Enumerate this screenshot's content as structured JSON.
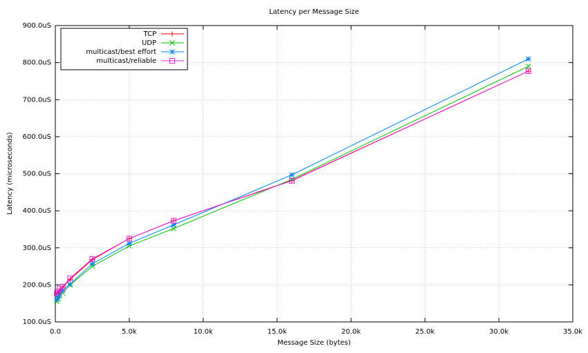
{
  "chart_data": {
    "type": "line",
    "title": "Latency per Message Size",
    "xlabel": "Message Size (bytes)",
    "ylabel": "Latency (microseconds)",
    "x": [
      100,
      200,
      300,
      500,
      1000,
      2500,
      5000,
      8000,
      16000,
      32000
    ],
    "series": [
      {
        "name": "TCP",
        "color": "#ff0000",
        "marker": "plus",
        "values": [
          175,
          178,
          185,
          193,
          215,
          268,
          325,
          373,
          482,
          777
        ]
      },
      {
        "name": "UDP",
        "color": "#00c000",
        "marker": "cross",
        "values": [
          155,
          162,
          170,
          178,
          200,
          250,
          305,
          352,
          485,
          790
        ]
      },
      {
        "name": "multicast/best effort",
        "color": "#0080ff",
        "marker": "star",
        "values": [
          160,
          168,
          175,
          185,
          202,
          257,
          312,
          362,
          497,
          810
        ]
      },
      {
        "name": "multicast/reliable",
        "color": "#e020e0",
        "marker": "square",
        "values": [
          177,
          182,
          190,
          195,
          218,
          270,
          325,
          373,
          481,
          777
        ]
      }
    ],
    "xlim": [
      0,
      35000
    ],
    "ylim": [
      100,
      900
    ],
    "xticks": [
      {
        "value": 0,
        "label": "0.0"
      },
      {
        "value": 5000,
        "label": "5.0k"
      },
      {
        "value": 10000,
        "label": "10.0k"
      },
      {
        "value": 15000,
        "label": "15.0k"
      },
      {
        "value": 20000,
        "label": "20.0k"
      },
      {
        "value": 25000,
        "label": "25.0k"
      },
      {
        "value": 30000,
        "label": "30.0k"
      },
      {
        "value": 35000,
        "label": "35.0k"
      }
    ],
    "yticks": [
      {
        "value": 100,
        "label": "100.0uS"
      },
      {
        "value": 200,
        "label": "200.0uS"
      },
      {
        "value": 300,
        "label": "300.0uS"
      },
      {
        "value": 400,
        "label": "400.0uS"
      },
      {
        "value": 500,
        "label": "500.0uS"
      },
      {
        "value": 600,
        "label": "600.0uS"
      },
      {
        "value": 700,
        "label": "700.0uS"
      },
      {
        "value": 800,
        "label": "800.0uS"
      },
      {
        "value": 900,
        "label": "900.0uS"
      }
    ],
    "grid": true,
    "legend": "top-left"
  }
}
